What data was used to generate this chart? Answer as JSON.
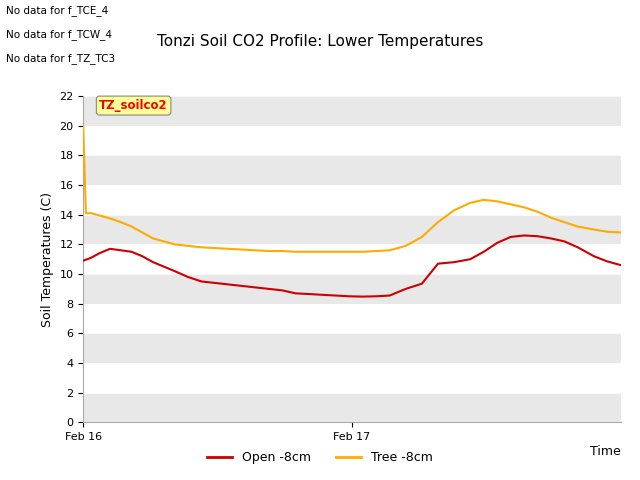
{
  "title": "Tonzi Soil CO2 Profile: Lower Temperatures",
  "xlabel": "Time",
  "ylabel": "Soil Temperatures (C)",
  "ylim": [
    0,
    22
  ],
  "yticks": [
    0,
    2,
    4,
    6,
    8,
    10,
    12,
    14,
    16,
    18,
    20,
    22
  ],
  "x_ticks_labels": [
    "Feb 16",
    "Feb 17"
  ],
  "x_ticks_positions": [
    0.0,
    0.5
  ],
  "background_color": "#ffffff",
  "plot_bg_color": "#ffffff",
  "no_data_texts": [
    "No data for f_TCE_4",
    "No data for f_TCW_4",
    "No data for f_TZ_TC3"
  ],
  "annotation_text": "TZ_soilco2",
  "legend": [
    {
      "label": "Open -8cm",
      "color": "#cc0000"
    },
    {
      "label": "Tree -8cm",
      "color": "#ffaa00"
    }
  ],
  "band_colors": [
    "#e8e8e8",
    "#ffffff"
  ],
  "open_8cm": {
    "x": [
      0.0,
      0.015,
      0.03,
      0.05,
      0.07,
      0.09,
      0.11,
      0.13,
      0.15,
      0.17,
      0.195,
      0.22,
      0.245,
      0.27,
      0.295,
      0.32,
      0.345,
      0.37,
      0.395,
      0.42,
      0.445,
      0.47,
      0.495,
      0.52,
      0.545,
      0.57,
      0.6,
      0.63,
      0.66,
      0.69,
      0.72,
      0.745,
      0.77,
      0.795,
      0.82,
      0.845,
      0.87,
      0.895,
      0.92,
      0.95,
      0.975,
      1.0
    ],
    "y": [
      10.9,
      11.1,
      11.4,
      11.7,
      11.6,
      11.5,
      11.2,
      10.8,
      10.5,
      10.2,
      9.8,
      9.5,
      9.4,
      9.3,
      9.2,
      9.1,
      9.0,
      8.9,
      8.7,
      8.65,
      8.6,
      8.55,
      8.5,
      8.48,
      8.5,
      8.55,
      9.0,
      9.35,
      10.7,
      10.8,
      11.0,
      11.5,
      12.1,
      12.5,
      12.6,
      12.55,
      12.4,
      12.2,
      11.8,
      11.2,
      10.85,
      10.6
    ],
    "color": "#cc0000",
    "linewidth": 1.5
  },
  "tree_8cm": {
    "x": [
      0.0,
      0.005,
      0.015,
      0.03,
      0.05,
      0.07,
      0.09,
      0.11,
      0.13,
      0.15,
      0.17,
      0.195,
      0.22,
      0.245,
      0.27,
      0.295,
      0.32,
      0.345,
      0.37,
      0.395,
      0.42,
      0.445,
      0.47,
      0.495,
      0.52,
      0.545,
      0.57,
      0.6,
      0.63,
      0.66,
      0.69,
      0.72,
      0.745,
      0.77,
      0.795,
      0.82,
      0.845,
      0.87,
      0.895,
      0.92,
      0.95,
      0.975,
      1.0
    ],
    "y": [
      20.0,
      14.1,
      14.1,
      13.95,
      13.75,
      13.5,
      13.2,
      12.8,
      12.4,
      12.2,
      12.0,
      11.9,
      11.8,
      11.75,
      11.7,
      11.65,
      11.6,
      11.55,
      11.55,
      11.5,
      11.5,
      11.5,
      11.5,
      11.5,
      11.5,
      11.55,
      11.6,
      11.9,
      12.5,
      13.5,
      14.3,
      14.8,
      15.0,
      14.9,
      14.7,
      14.5,
      14.2,
      13.8,
      13.5,
      13.2,
      13.0,
      12.85,
      12.8
    ],
    "color": "#ffaa00",
    "linewidth": 1.5
  }
}
